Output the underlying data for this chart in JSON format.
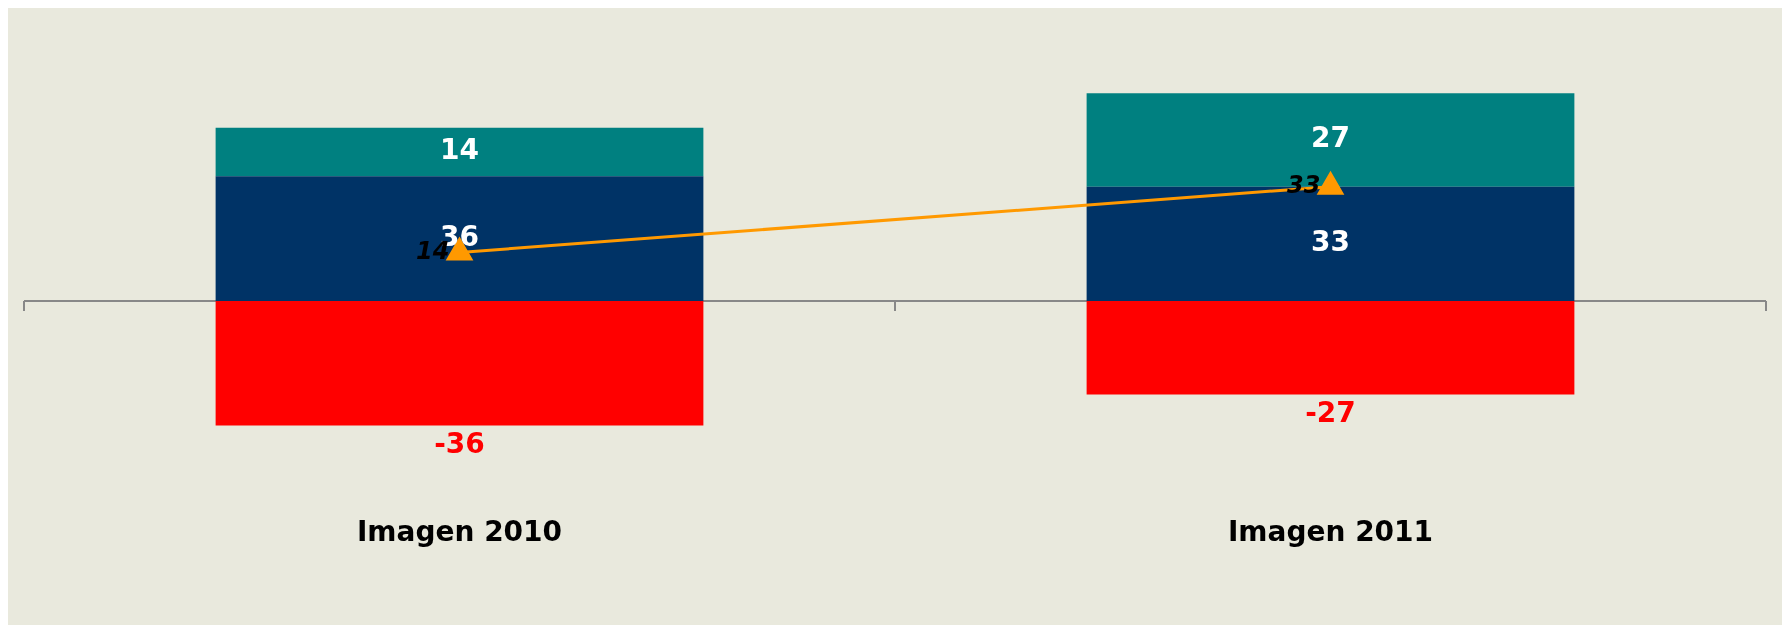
{
  "chart_data": {
    "type": "bar",
    "stacked": true,
    "categories": [
      "Imagen 2010",
      "Imagen 2011"
    ],
    "series": [
      {
        "color": "#003366",
        "values": [
          36,
          33
        ]
      },
      {
        "color": "#008080",
        "values": [
          14,
          27
        ]
      },
      {
        "color": "#ff0000",
        "values": [
          -36,
          -27
        ]
      },
      {
        "type": "line",
        "color": "#ff9900",
        "values": [
          14,
          33
        ]
      }
    ],
    "marker": "triangle",
    "data_labels": true,
    "legend": false,
    "grid": false
  }
}
